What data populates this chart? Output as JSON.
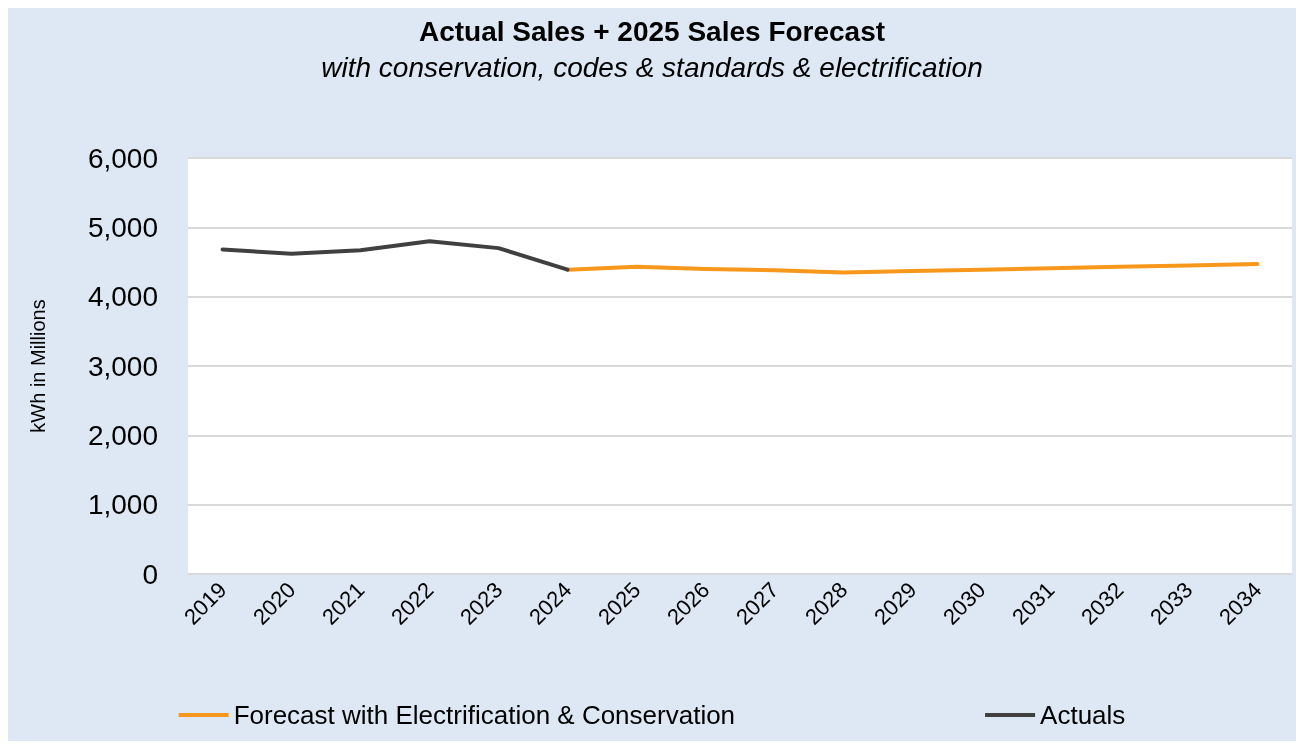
{
  "chart_data": {
    "type": "line",
    "title": "Actual Sales + 2025 Sales Forecast",
    "subtitle": "with conservation, codes & standards & electrification",
    "ylabel": "kWh in Millions",
    "categories": [
      "2019",
      "2020",
      "2021",
      "2022",
      "2023",
      "2024",
      "2025",
      "2026",
      "2027",
      "2028",
      "2029",
      "2030",
      "2031",
      "2032",
      "2033",
      "2034"
    ],
    "series": [
      {
        "name": "Forecast with Electrification & Conservation",
        "color": "#f7981d",
        "values": [
          null,
          null,
          null,
          null,
          null,
          4390,
          4430,
          4400,
          4380,
          4350,
          4370,
          4390,
          4410,
          4430,
          4450,
          4470
        ]
      },
      {
        "name": "Actuals",
        "color": "#404040",
        "values": [
          4680,
          4620,
          4670,
          4800,
          4700,
          4390,
          null,
          null,
          null,
          null,
          null,
          null,
          null,
          null,
          null,
          null
        ]
      }
    ],
    "ylim": [
      0,
      6000
    ],
    "yticks": [
      0,
      {
        "value": 1000,
        "label": "1,000"
      },
      {
        "value": 2000,
        "label": "2,000"
      },
      {
        "value": 3000,
        "label": "3,000"
      },
      {
        "value": 4000,
        "label": "4,000"
      },
      {
        "value": 5000,
        "label": "5,000"
      },
      {
        "value": 6000,
        "label": "6,000"
      }
    ],
    "grid": "y",
    "legend": "bottom",
    "marker": "none",
    "line_style": "solid"
  }
}
